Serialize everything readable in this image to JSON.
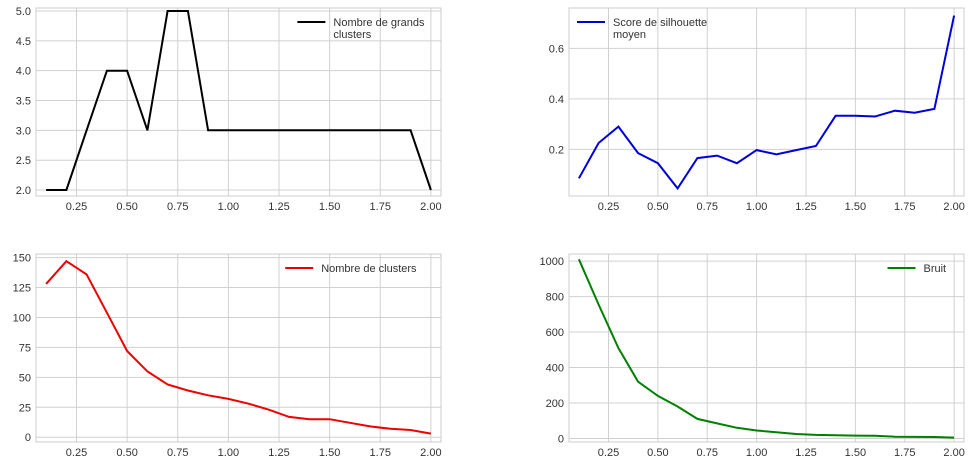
{
  "chart_data": [
    {
      "type": "line",
      "x": [
        0.1,
        0.2,
        0.3,
        0.4,
        0.5,
        0.6,
        0.7,
        0.8,
        0.9,
        1.0,
        1.1,
        1.2,
        1.3,
        1.4,
        1.5,
        1.6,
        1.7,
        1.8,
        1.9,
        2.0
      ],
      "series": [
        {
          "name": "Nombre de grands clusters",
          "values": [
            2,
            2,
            3,
            4,
            4,
            3,
            5,
            5,
            3,
            3,
            3,
            3,
            3,
            3,
            3,
            3,
            3,
            3,
            3,
            2
          ],
          "color": "#000000"
        }
      ],
      "xlim": [
        0.05,
        2.05
      ],
      "ylim": [
        1.9,
        5.05
      ],
      "xticks": [
        0.25,
        0.5,
        0.75,
        1.0,
        1.25,
        1.5,
        1.75,
        2.0
      ],
      "xtick_labels": [
        "0.25",
        "0.50",
        "0.75",
        "1.00",
        "1.25",
        "1.50",
        "1.75",
        "2.00"
      ],
      "yticks": [
        2.0,
        2.5,
        3.0,
        3.5,
        4.0,
        4.5,
        5.0
      ],
      "ytick_labels": [
        "2.0",
        "2.5",
        "3.0",
        "3.5",
        "4.0",
        "4.5",
        "5.0"
      ],
      "legend_lines": [
        "Nombre de grands",
        "clusters"
      ],
      "legend_placement": "top-right",
      "grid": true
    },
    {
      "type": "line",
      "x": [
        0.1,
        0.2,
        0.3,
        0.4,
        0.5,
        0.6,
        0.7,
        0.8,
        0.9,
        1.0,
        1.1,
        1.2,
        1.3,
        1.4,
        1.5,
        1.6,
        1.7,
        1.8,
        1.9,
        2.0
      ],
      "series": [
        {
          "name": "Score de silhouette moyen",
          "values": [
            0.085,
            0.225,
            0.29,
            0.185,
            0.145,
            0.045,
            0.165,
            0.175,
            0.145,
            0.197,
            0.18,
            0.197,
            0.213,
            0.333,
            0.333,
            0.33,
            0.353,
            0.345,
            0.36,
            0.73
          ],
          "color": "#0000dd"
        }
      ],
      "xlim": [
        0.05,
        2.05
      ],
      "ylim": [
        0.015,
        0.76
      ],
      "xticks": [
        0.25,
        0.5,
        0.75,
        1.0,
        1.25,
        1.5,
        1.75,
        2.0
      ],
      "xtick_labels": [
        "0.25",
        "0.50",
        "0.75",
        "1.00",
        "1.25",
        "1.50",
        "1.75",
        "2.00"
      ],
      "yticks": [
        0.2,
        0.4,
        0.6
      ],
      "ytick_labels": [
        "0.2",
        "0.4",
        "0.6"
      ],
      "legend_lines": [
        "Score de silhouette",
        "moyen"
      ],
      "legend_placement": "top-left",
      "grid": true
    },
    {
      "type": "line",
      "x": [
        0.1,
        0.2,
        0.3,
        0.4,
        0.5,
        0.6,
        0.7,
        0.8,
        0.9,
        1.0,
        1.1,
        1.2,
        1.3,
        1.4,
        1.5,
        1.6,
        1.7,
        1.8,
        1.9,
        2.0
      ],
      "series": [
        {
          "name": "Nombre de clusters",
          "values": [
            128,
            147,
            136,
            104,
            72,
            55,
            44,
            39,
            35,
            32,
            28,
            23,
            17,
            15,
            15,
            12,
            9,
            7,
            6,
            3
          ],
          "color": "#ee0000"
        }
      ],
      "xlim": [
        0.05,
        2.05
      ],
      "ylim": [
        -4,
        153
      ],
      "xticks": [
        0.25,
        0.5,
        0.75,
        1.0,
        1.25,
        1.5,
        1.75,
        2.0
      ],
      "xtick_labels": [
        "0.25",
        "0.50",
        "0.75",
        "1.00",
        "1.25",
        "1.50",
        "1.75",
        "2.00"
      ],
      "yticks": [
        0,
        25,
        50,
        75,
        100,
        125,
        150
      ],
      "ytick_labels": [
        "0",
        "25",
        "50",
        "75",
        "100",
        "125",
        "150"
      ],
      "legend_lines": [
        "Nombre de clusters"
      ],
      "legend_placement": "top-right",
      "grid": true
    },
    {
      "type": "line",
      "x": [
        0.1,
        0.2,
        0.3,
        0.4,
        0.5,
        0.6,
        0.7,
        0.8,
        0.9,
        1.0,
        1.1,
        1.2,
        1.3,
        1.4,
        1.5,
        1.6,
        1.7,
        1.8,
        1.9,
        2.0
      ],
      "series": [
        {
          "name": "Bruit",
          "values": [
            1010,
            755,
            510,
            320,
            240,
            180,
            110,
            85,
            60,
            45,
            35,
            25,
            20,
            18,
            16,
            15,
            10,
            9,
            8,
            5
          ],
          "color": "#008000"
        }
      ],
      "xlim": [
        0.05,
        2.05
      ],
      "ylim": [
        -20,
        1040
      ],
      "xticks": [
        0.25,
        0.5,
        0.75,
        1.0,
        1.25,
        1.5,
        1.75,
        2.0
      ],
      "xtick_labels": [
        "0.25",
        "0.50",
        "0.75",
        "1.00",
        "1.25",
        "1.50",
        "1.75",
        "2.00"
      ],
      "yticks": [
        0,
        200,
        400,
        600,
        800,
        1000
      ],
      "ytick_labels": [
        "0",
        "200",
        "400",
        "600",
        "800",
        "1000"
      ],
      "legend_lines": [
        "Bruit"
      ],
      "legend_placement": "top-right",
      "grid": true
    }
  ]
}
